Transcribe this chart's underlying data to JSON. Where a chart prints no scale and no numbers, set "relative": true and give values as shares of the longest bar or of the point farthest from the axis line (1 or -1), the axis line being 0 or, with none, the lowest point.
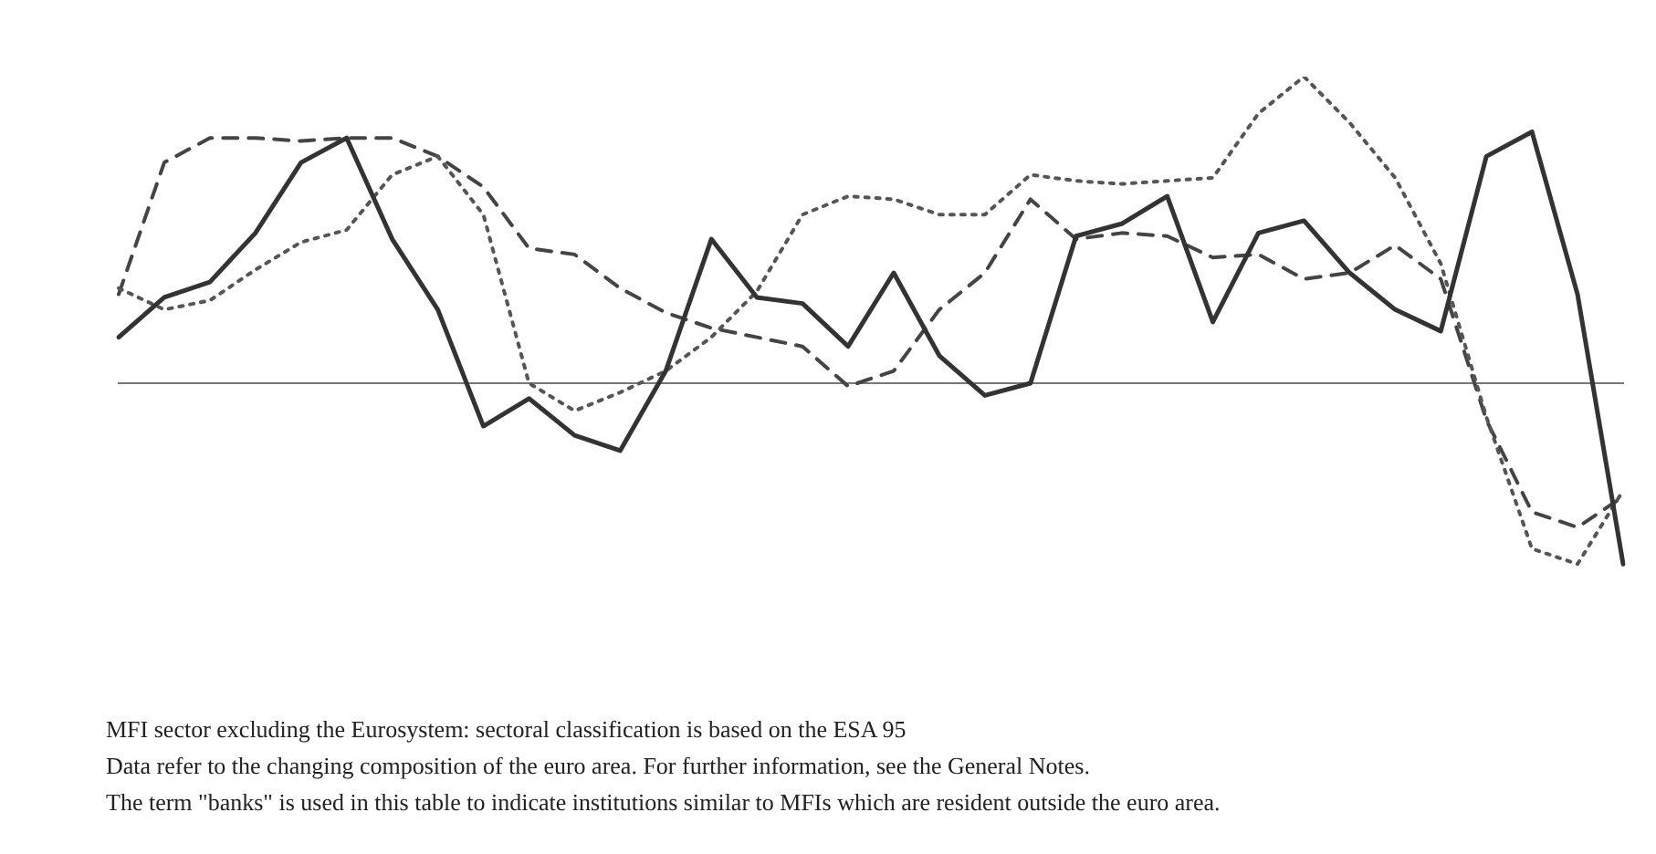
{
  "chart_data": {
    "type": "line",
    "relative": true,
    "legend": false,
    "grid": false,
    "categories": [
      null,
      null,
      null,
      null,
      null,
      null,
      null,
      null,
      null,
      null,
      null,
      null,
      null,
      null,
      null,
      null,
      null,
      null,
      null,
      null,
      null,
      null,
      null,
      null,
      null,
      null,
      null,
      null,
      null,
      null,
      null,
      null,
      null,
      null
    ],
    "series": [
      {
        "color": "#333333",
        "line_style": "solid",
        "values": [
          0.15,
          0.28,
          0.33,
          0.49,
          0.72,
          0.8,
          0.47,
          0.24,
          -0.14,
          -0.05,
          -0.17,
          -0.22,
          0.04,
          0.47,
          0.28,
          0.26,
          0.12,
          0.36,
          0.09,
          -0.04,
          0,
          0.48,
          0.52,
          0.61,
          0.2,
          0.49,
          0.53,
          0.36,
          0.24,
          0.17,
          0.74,
          0.82,
          0.29,
          -0.59
        ]
      },
      {
        "color": "#555555",
        "line_style": "dotted",
        "values": [
          0.31,
          0.24,
          0.27,
          0.37,
          0.46,
          0.5,
          0.68,
          0.74,
          0.55,
          0,
          -0.09,
          -0.03,
          0.04,
          0.15,
          0.3,
          0.55,
          0.61,
          0.6,
          0.55,
          0.55,
          0.68,
          0.66,
          0.65,
          0.66,
          0.67,
          0.88,
          1,
          0.85,
          0.67,
          0.39,
          -0.11,
          -0.54,
          -0.59,
          -0.35
        ]
      },
      {
        "color": "#444444",
        "line_style": "dashed",
        "values": [
          0.29,
          0.72,
          0.8,
          0.8,
          0.79,
          0.8,
          0.8,
          0.74,
          0.64,
          0.44,
          0.42,
          0.31,
          0.23,
          0.18,
          0.15,
          0.12,
          -0.01,
          0.04,
          0.24,
          0.36,
          0.6,
          0.47,
          0.49,
          0.48,
          0.41,
          0.42,
          0.34,
          0.36,
          0.45,
          0.34,
          -0.12,
          -0.42,
          -0.47,
          -0.37
        ]
      }
    ],
    "annotations": [
      "MFI sector excluding the Eurosystem: sectoral classification is based on the ESA 95",
      "Data refer to the changing composition of the euro area. For further information, see the General Notes.",
      "The term \"banks\" is used in this table to indicate institutions similar to MFIs which are resident outside the euro area."
    ]
  }
}
